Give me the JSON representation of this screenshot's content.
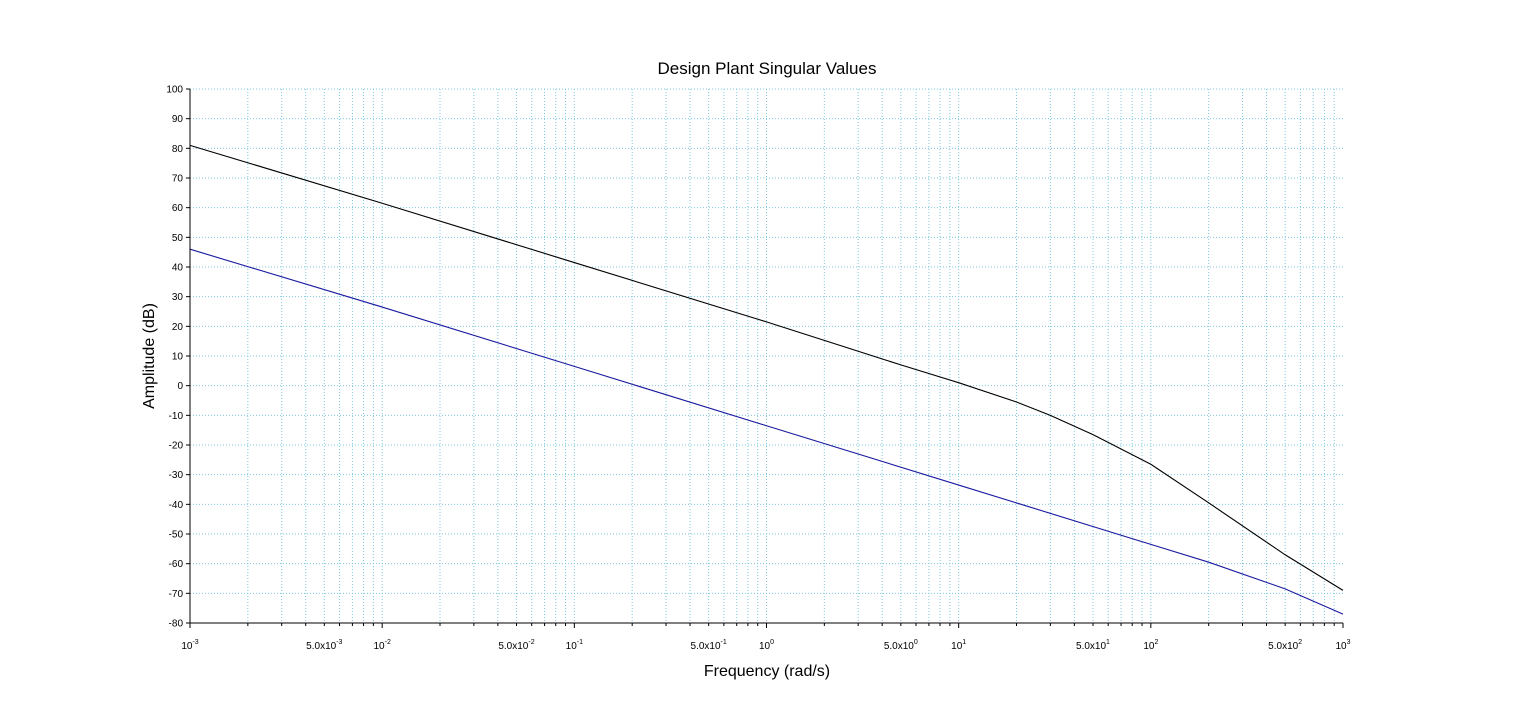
{
  "chart_data": {
    "type": "line",
    "title": "Design Plant Singular Values",
    "xlabel": "Frequency (rad/s)",
    "ylabel": "Amplitude (dB)",
    "x_scale": "log",
    "xlim": [
      0.001,
      1000
    ],
    "ylim": [
      -80,
      100
    ],
    "grid": true,
    "colors": {
      "grid": "#7ec8e3",
      "axis": "#000000"
    },
    "x_ticks": [
      {
        "base": "10",
        "exp": "-3",
        "value": 0.001
      },
      {
        "base": "5.0x10",
        "exp": "-3",
        "value": 0.005
      },
      {
        "base": "10",
        "exp": "-2",
        "value": 0.01
      },
      {
        "base": "5.0x10",
        "exp": "-2",
        "value": 0.05
      },
      {
        "base": "10",
        "exp": "-1",
        "value": 0.1
      },
      {
        "base": "5.0x10",
        "exp": "-1",
        "value": 0.5
      },
      {
        "base": "10",
        "exp": "0",
        "value": 1
      },
      {
        "base": "5.0x10",
        "exp": "0",
        "value": 5
      },
      {
        "base": "10",
        "exp": "1",
        "value": 10
      },
      {
        "base": "5.0x10",
        "exp": "1",
        "value": 50
      },
      {
        "base": "10",
        "exp": "2",
        "value": 100
      },
      {
        "base": "5.0x10",
        "exp": "2",
        "value": 500
      },
      {
        "base": "10",
        "exp": "3",
        "value": 1000
      }
    ],
    "y_ticks": [
      "100",
      "90",
      "80",
      "70",
      "60",
      "50",
      "40",
      "30",
      "20",
      "10",
      "0",
      "-10",
      "-20",
      "-30",
      "-40",
      "-50",
      "-60",
      "-70",
      "-80"
    ],
    "series": [
      {
        "color": "#000000",
        "points": [
          [
            0.001,
            81
          ],
          [
            0.01,
            61.5
          ],
          [
            0.1,
            41.5
          ],
          [
            1,
            21.5
          ],
          [
            5,
            7
          ],
          [
            10,
            1
          ],
          [
            20,
            -5.5
          ],
          [
            30,
            -10
          ],
          [
            50,
            -16.5
          ],
          [
            100,
            -26.5
          ],
          [
            200,
            -39.5
          ],
          [
            500,
            -57
          ],
          [
            1000,
            -69
          ]
        ]
      },
      {
        "color": "#1a1aa0",
        "points": [
          [
            0.001,
            46
          ],
          [
            0.01,
            26.5
          ],
          [
            0.1,
            6.5
          ],
          [
            1,
            -13.5
          ],
          [
            10,
            -33.5
          ],
          [
            100,
            -53.5
          ],
          [
            200,
            -59.5
          ],
          [
            500,
            -68.5
          ],
          [
            1000,
            -77
          ]
        ]
      }
    ]
  }
}
